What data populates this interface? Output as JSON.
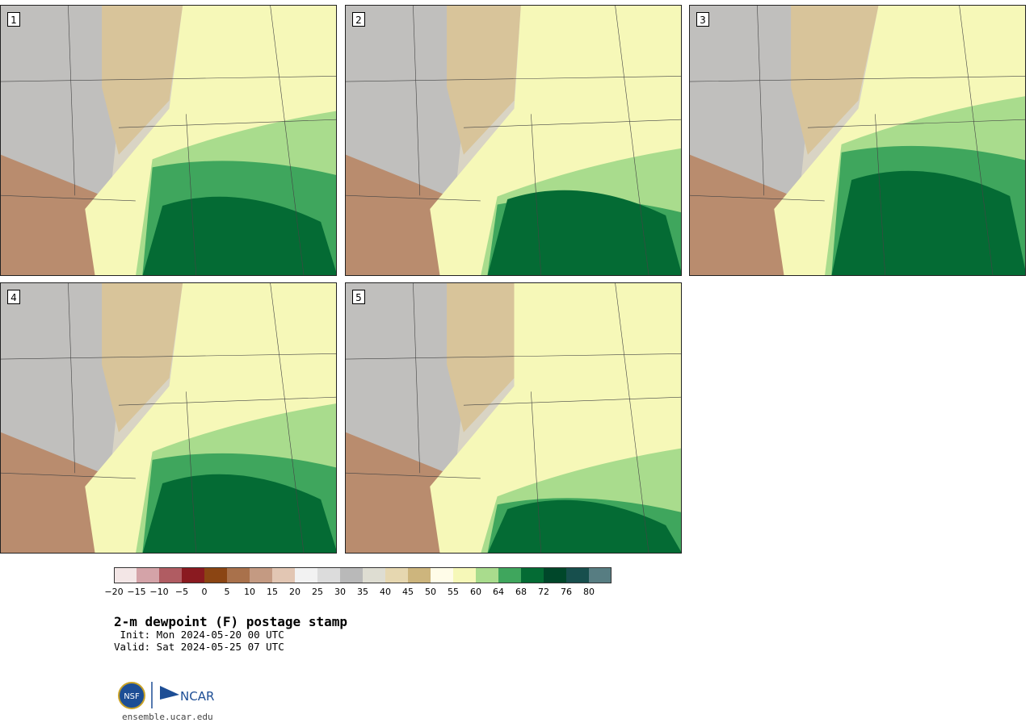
{
  "panels": [
    {
      "label": "1",
      "scheme": [
        0.55,
        0.55,
        0.45
      ]
    },
    {
      "label": "2",
      "scheme": [
        0.3,
        0.6,
        0.35
      ]
    },
    {
      "label": "3",
      "scheme": [
        0.65,
        0.75,
        0.55
      ]
    },
    {
      "label": "4",
      "scheme": [
        0.45,
        0.55,
        0.45
      ]
    },
    {
      "label": "5",
      "scheme": [
        0.15,
        0.35,
        0.25
      ]
    }
  ],
  "colorbar": {
    "colors": [
      "#f3e6e6",
      "#d4a3a8",
      "#b05c62",
      "#8a1a20",
      "#8b4513",
      "#a9714b",
      "#c49a82",
      "#e2c6b3",
      "#f2f2f2",
      "#dcdcdc",
      "#b9b9b9",
      "#deddd2",
      "#e6d7b0",
      "#cdb57d",
      "#fffce8",
      "#f6f8b8",
      "#a9dc8d",
      "#3fa65d",
      "#046b34",
      "#00472a",
      "#174f4d",
      "#577d82"
    ],
    "tick_labels": [
      "−20",
      "−15",
      "−10",
      "−5",
      "0",
      "5",
      "10",
      "15",
      "20",
      "25",
      "30",
      "35",
      "40",
      "45",
      "50",
      "55",
      "60",
      "64",
      "68",
      "72",
      "76",
      "80"
    ]
  },
  "title": "2-m dewpoint (F) postage stamp",
  "init": " Init: Mon 2024-05-20 00 UTC",
  "valid": "Valid: Sat 2024-05-25 07 UTC",
  "logo": {
    "nsf": "NSF",
    "ncar": "NCAR"
  },
  "site": "ensemble.ucar.edu"
}
